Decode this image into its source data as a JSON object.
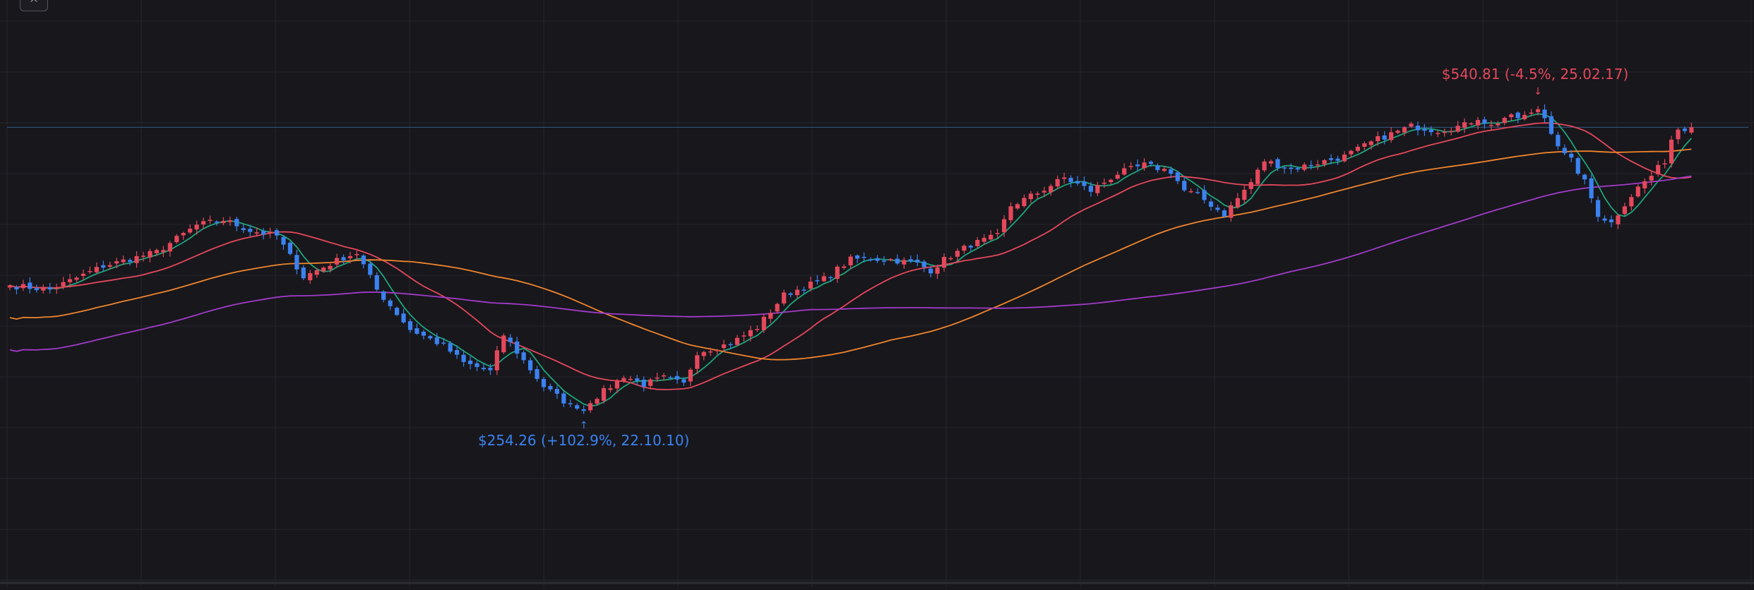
{
  "toolbar": {
    "collapse_glyph": "^",
    "collapse_icon": "chevron-up-icon"
  },
  "colors": {
    "background": "#17171c",
    "grid": "#26262d",
    "up": "#e5485b",
    "down": "#3b82f0",
    "current_price_line": "#2f4f73"
  },
  "chart_data": {
    "type": "candlestick",
    "title": "",
    "xlabel": "",
    "ylabel": "",
    "ylim": [
      180,
      600
    ],
    "grid": true,
    "legend": "none",
    "current_price": 521,
    "annotations": {
      "high": {
        "text": "$540.81 (-4.5%, 25.02.17)",
        "price": 540.81,
        "bar_index": 229,
        "color": "#e5485b"
      },
      "low": {
        "text": "$254.26 (+102.9%, 22.10.10)",
        "price": 254.26,
        "bar_index": 86,
        "color": "#3b82f0"
      }
    },
    "moving_averages": [
      {
        "period": 5,
        "color": "#1fa37a"
      },
      {
        "period": 20,
        "color": "#e5485b"
      },
      {
        "period": 60,
        "color": "#f0852d"
      },
      {
        "period": 120,
        "color": "#a23bc8"
      }
    ],
    "anchors": [
      [
        0,
        374
      ],
      [
        6,
        370
      ],
      [
        14,
        392
      ],
      [
        22,
        405
      ],
      [
        28,
        430
      ],
      [
        32,
        435
      ],
      [
        36,
        425
      ],
      [
        40,
        420
      ],
      [
        44,
        382
      ],
      [
        50,
        400
      ],
      [
        52,
        404
      ],
      [
        55,
        370
      ],
      [
        60,
        333
      ],
      [
        65,
        318
      ],
      [
        68,
        302
      ],
      [
        72,
        294
      ],
      [
        74,
        328
      ],
      [
        80,
        280
      ],
      [
        84,
        262
      ],
      [
        86,
        262
      ],
      [
        90,
        280
      ],
      [
        92,
        290
      ],
      [
        95,
        282
      ],
      [
        98,
        288
      ],
      [
        101,
        282
      ],
      [
        103,
        312
      ],
      [
        108,
        320
      ],
      [
        112,
        335
      ],
      [
        116,
        365
      ],
      [
        122,
        380
      ],
      [
        126,
        398
      ],
      [
        128,
        399
      ],
      [
        132,
        398
      ],
      [
        136,
        394
      ],
      [
        138,
        388
      ],
      [
        140,
        398
      ],
      [
        144,
        412
      ],
      [
        148,
        420
      ],
      [
        150,
        448
      ],
      [
        154,
        460
      ],
      [
        158,
        474
      ],
      [
        162,
        462
      ],
      [
        166,
        478
      ],
      [
        170,
        486
      ],
      [
        174,
        480
      ],
      [
        176,
        462
      ],
      [
        178,
        458
      ],
      [
        182,
        440
      ],
      [
        186,
        470
      ],
      [
        188,
        490
      ],
      [
        192,
        482
      ],
      [
        196,
        488
      ],
      [
        200,
        494
      ],
      [
        205,
        510
      ],
      [
        210,
        522
      ],
      [
        214,
        518
      ],
      [
        218,
        523
      ],
      [
        220,
        530
      ],
      [
        222,
        522
      ],
      [
        224,
        530
      ],
      [
        226,
        530
      ],
      [
        228,
        533
      ],
      [
        229,
        540
      ],
      [
        230,
        530
      ],
      [
        232,
        505
      ],
      [
        233,
        495
      ],
      [
        234,
        490
      ],
      [
        236,
        470
      ],
      [
        238,
        440
      ],
      [
        240,
        432
      ],
      [
        242,
        450
      ],
      [
        244,
        465
      ],
      [
        246,
        476
      ],
      [
        248,
        490
      ],
      [
        249,
        510
      ],
      [
        250,
        520
      ],
      [
        252,
        521
      ]
    ]
  }
}
